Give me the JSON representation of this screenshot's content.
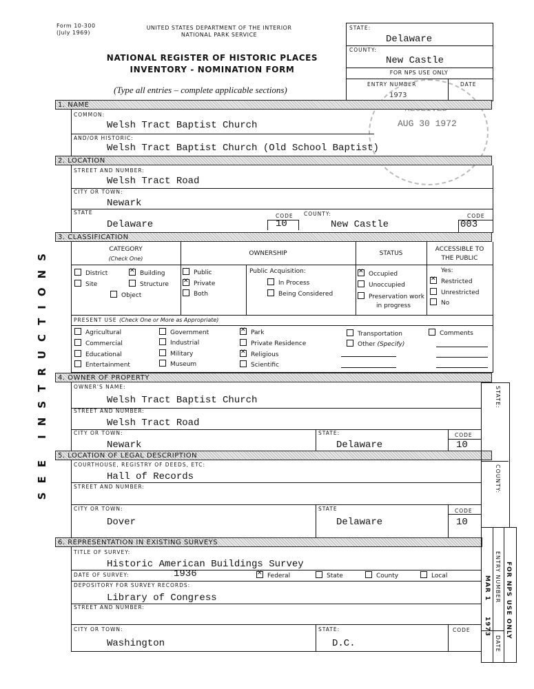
{
  "header": {
    "form_no": "Form 10-300",
    "form_date": "(July 1969)",
    "dept": "UNITED STATES DEPARTMENT OF THE INTERIOR",
    "service": "NATIONAL PARK SERVICE",
    "title1": "NATIONAL REGISTER OF HISTORIC PLACES",
    "title2": "INVENTORY - NOMINATION FORM",
    "instructions": "(Type all entries – complete applicable sections)"
  },
  "top_box": {
    "state_label": "STATE:",
    "state": "Delaware",
    "county_label": "COUNTY:",
    "county": "New Castle",
    "nps": "FOR NPS USE ONLY",
    "entry_label": "ENTRY NUMBER",
    "date_label": "DATE",
    "entry_stamp": "1973",
    "received_stamp": "RECEIVED",
    "received_date": "AUG 30 1972"
  },
  "side_text": "SEE INSTRUCTIONS",
  "s1": {
    "title": "1. NAME",
    "common_label": "COMMON:",
    "common": "Welsh Tract Baptist Church",
    "historic_label": "AND/OR HISTORIC:",
    "historic": "Welsh Tract Baptist Church (Old School Baptist)"
  },
  "s2": {
    "title": "2. LOCATION",
    "street_label": "STREET AND NUMBER:",
    "street": "Welsh Tract Road",
    "city_label": "CITY OR TOWN:",
    "city": "Newark",
    "state_label": "STATE",
    "state": "Delaware",
    "code_label": "CODE",
    "state_code": "10",
    "county_label": "COUNTY:",
    "county": "New Castle",
    "county_code": "003"
  },
  "s3": {
    "title": "3. CLASSIFICATION",
    "category": "CATEGORY",
    "check_one": "(Check One)",
    "ownership": "OWNERSHIP",
    "status": "STATUS",
    "accessible": "ACCESSIBLE TO THE PUBLIC",
    "cat": [
      {
        "label": "District",
        "checked": false
      },
      {
        "label": "Building",
        "checked": true
      },
      {
        "label": "Site",
        "checked": false
      },
      {
        "label": "Structure",
        "checked": false
      },
      {
        "label": "Object",
        "checked": false
      }
    ],
    "own": [
      {
        "label": "Public",
        "checked": false
      },
      {
        "label": "Private",
        "checked": true
      },
      {
        "label": "Both",
        "checked": false
      }
    ],
    "acq_label": "Public Acquisition:",
    "acq": [
      {
        "label": "In Process",
        "checked": false
      },
      {
        "label": "Being Considered",
        "checked": false
      }
    ],
    "stat": [
      {
        "label": "Occupied",
        "checked": true
      },
      {
        "label": "Unoccupied",
        "checked": false
      },
      {
        "label": "Preservation work",
        "label2": "in progress",
        "checked": false
      }
    ],
    "yes": "Yes:",
    "acc": [
      {
        "label": "Restricted",
        "checked": true
      },
      {
        "label": "Unrestricted",
        "checked": false
      },
      {
        "label": "No",
        "checked": false
      }
    ],
    "present_use": "PRESENT USE",
    "present_use_note": "(Check One or More as Appropriate)",
    "uses": [
      {
        "label": "Agricultural",
        "checked": false
      },
      {
        "label": "Commercial",
        "checked": false
      },
      {
        "label": "Educational",
        "checked": false
      },
      {
        "label": "Entertainment",
        "checked": false
      },
      {
        "label": "Government",
        "checked": false
      },
      {
        "label": "Industrial",
        "checked": false
      },
      {
        "label": "Military",
        "checked": false
      },
      {
        "label": "Museum",
        "checked": false
      },
      {
        "label": "Park",
        "checked": true
      },
      {
        "label": "Private Residence",
        "checked": false
      },
      {
        "label": "Religious",
        "checked": true
      },
      {
        "label": "Scientific",
        "checked": false
      },
      {
        "label": "Transportation",
        "checked": false
      },
      {
        "label": "Other",
        "label2": "(Specify)",
        "checked": false
      },
      {
        "label": "Comments",
        "checked": false
      }
    ]
  },
  "s4": {
    "title": "4. OWNER OF PROPERTY",
    "name_label": "OWNER'S NAME:",
    "name": "Welsh Tract Baptist Church",
    "street_label": "STREET AND NUMBER:",
    "street": "Welsh Tract Road",
    "city_label": "CITY OR TOWN:",
    "city": "Newark",
    "state_label": "STATE:",
    "state": "Delaware",
    "code_label": "CODE",
    "code": "10"
  },
  "s5": {
    "title": "5. LOCATION OF LEGAL DESCRIPTION",
    "courthouse_label": "COURTHOUSE, REGISTRY OF DEEDS, ETC:",
    "courthouse": "Hall of Records",
    "street_label": "STREET AND NUMBER:",
    "city_label": "CITY OR TOWN:",
    "city": "Dover",
    "state_label": "STATE",
    "state": "Delaware",
    "code_label": "CODE",
    "code": "10"
  },
  "s6": {
    "title": "6. REPRESENTATION IN EXISTING SURVEYS",
    "title_label": "TITLE OF SURVEY:",
    "survey": "Historic American Buildings Survey",
    "date_label": "DATE OF SURVEY:",
    "date": "1936",
    "levels": [
      {
        "label": "Federal",
        "checked": true
      },
      {
        "label": "State",
        "checked": false
      },
      {
        "label": "County",
        "checked": false
      },
      {
        "label": "Local",
        "checked": false
      }
    ],
    "depository_label": "DEPOSITORY FOR SURVEY RECORDS:",
    "depository": "Library of Congress",
    "street_label": "STREET AND NUMBER:",
    "city_label": "CITY OR TOWN:",
    "city": "Washington",
    "state_label": "STATE:",
    "state": "D.C.",
    "code_label": "CODE"
  },
  "side_box": {
    "state_label": "STATE:",
    "county_label": "COUNTY:",
    "nps": "FOR NPS USE ONLY",
    "entry_label": "ENTRY NUMBER",
    "date_label": "DATE",
    "entry_stamp": "MAR 1",
    "date_stamp": "1973"
  }
}
